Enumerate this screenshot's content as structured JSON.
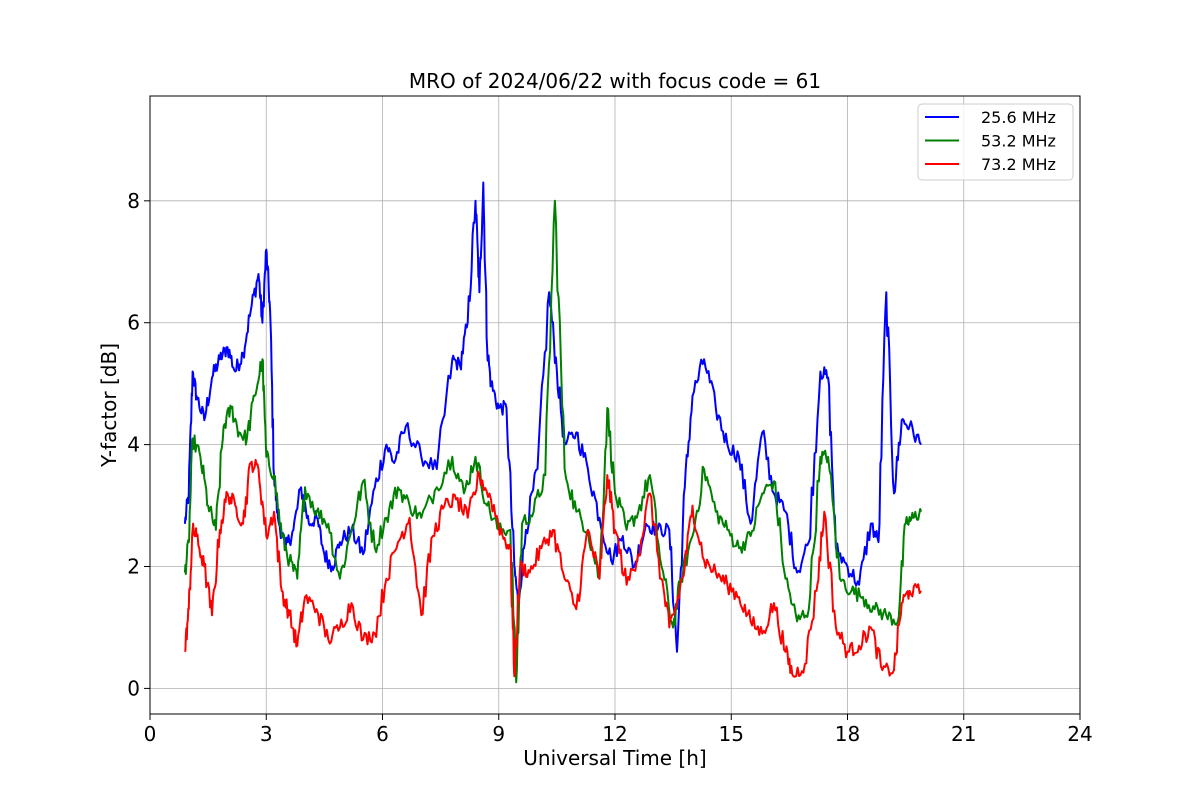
{
  "chart_data": {
    "type": "line",
    "title": "MRO of 2024/06/22 with focus code = 61",
    "xlabel": "Universal Time [h]",
    "ylabel": "Y-factor [dB]",
    "xlim": [
      0,
      24
    ],
    "ylim": [
      -0.42,
      9.72
    ],
    "xticks": [
      0,
      3,
      6,
      9,
      12,
      15,
      18,
      21,
      24
    ],
    "yticks": [
      0,
      2,
      4,
      6,
      8
    ],
    "grid": true,
    "legend_position": "top-right",
    "series": [
      {
        "name": "25.6 MHz",
        "color": "#0000ff",
        "x": [
          0.9,
          1.0,
          1.1,
          1.2,
          1.4,
          1.6,
          1.8,
          2.0,
          2.2,
          2.4,
          2.6,
          2.8,
          2.9,
          3.0,
          3.1,
          3.2,
          3.3,
          3.5,
          3.7,
          3.9,
          4.1,
          4.3,
          4.5,
          4.7,
          4.9,
          5.2,
          5.5,
          5.8,
          6.1,
          6.3,
          6.6,
          7.0,
          7.4,
          7.8,
          8.0,
          8.2,
          8.4,
          8.5,
          8.6,
          8.7,
          8.8,
          9.0,
          9.2,
          9.4,
          9.5,
          9.7,
          10.0,
          10.3,
          10.5,
          10.7,
          11.0,
          11.3,
          11.6,
          11.9,
          12.2,
          12.5,
          12.8,
          13.1,
          13.4,
          13.6,
          13.8,
          14.0,
          14.3,
          14.6,
          14.9,
          15.2,
          15.5,
          15.8,
          16.1,
          16.4,
          16.7,
          17.0,
          17.3,
          17.5,
          17.7,
          18.0,
          18.3,
          18.6,
          18.8,
          19.0,
          19.2,
          19.4,
          19.6,
          19.9
        ],
        "y": [
          2.7,
          3.2,
          5.2,
          4.8,
          4.4,
          5.1,
          5.4,
          5.6,
          5.2,
          5.5,
          6.2,
          6.8,
          6.0,
          7.2,
          6.2,
          3.5,
          2.8,
          2.3,
          2.6,
          3.3,
          2.7,
          2.8,
          2.2,
          2.0,
          2.4,
          2.6,
          2.2,
          3.3,
          4.0,
          3.7,
          4.3,
          3.8,
          3.6,
          5.4,
          5.3,
          6.0,
          8.0,
          6.5,
          8.3,
          5.6,
          5.0,
          4.6,
          4.6,
          2.0,
          1.4,
          2.6,
          3.6,
          6.5,
          5.2,
          4.0,
          4.2,
          3.6,
          2.8,
          2.1,
          2.5,
          2.0,
          2.7,
          2.6,
          2.6,
          0.6,
          3.3,
          4.8,
          5.4,
          4.6,
          4.0,
          3.8,
          2.7,
          4.2,
          3.2,
          2.9,
          1.9,
          2.4,
          5.2,
          5.1,
          2.3,
          2.0,
          1.7,
          2.7,
          2.4,
          6.5,
          3.2,
          4.4,
          4.3,
          4.0
        ]
      },
      {
        "name": "53.2 MHz",
        "color": "#008000",
        "x": [
          0.9,
          1.0,
          1.1,
          1.3,
          1.5,
          1.7,
          1.9,
          2.1,
          2.3,
          2.5,
          2.7,
          2.9,
          3.0,
          3.2,
          3.4,
          3.6,
          3.8,
          4.0,
          4.3,
          4.6,
          4.9,
          5.2,
          5.5,
          5.8,
          6.1,
          6.4,
          6.7,
          7.0,
          7.4,
          7.8,
          8.1,
          8.4,
          8.7,
          9.0,
          9.3,
          9.45,
          9.6,
          9.9,
          10.2,
          10.45,
          10.7,
          11.0,
          11.3,
          11.6,
          11.8,
          12.0,
          12.3,
          12.6,
          12.9,
          13.2,
          13.5,
          13.7,
          14.0,
          14.3,
          14.6,
          14.9,
          15.2,
          15.5,
          15.8,
          16.1,
          16.4,
          16.7,
          17.0,
          17.3,
          17.5,
          17.8,
          18.1,
          18.4,
          18.7,
          19.0,
          19.3,
          19.5,
          19.7,
          19.9
        ],
        "y": [
          1.9,
          2.4,
          4.1,
          3.8,
          3.0,
          2.6,
          4.3,
          4.6,
          4.2,
          4.1,
          4.8,
          5.4,
          3.8,
          3.5,
          2.5,
          2.1,
          1.8,
          3.3,
          2.9,
          2.7,
          1.8,
          2.6,
          3.4,
          2.3,
          2.8,
          3.3,
          3.0,
          2.8,
          3.3,
          3.8,
          3.2,
          3.8,
          3.0,
          2.6,
          2.6,
          0.1,
          2.7,
          2.9,
          3.5,
          8.0,
          3.6,
          2.9,
          2.6,
          1.8,
          4.6,
          3.2,
          2.6,
          2.9,
          3.5,
          2.0,
          1.0,
          1.8,
          2.5,
          3.6,
          2.9,
          2.6,
          2.3,
          2.5,
          3.2,
          3.4,
          1.8,
          1.1,
          1.3,
          3.8,
          3.8,
          1.8,
          1.6,
          1.5,
          1.3,
          1.2,
          1.1,
          2.7,
          2.8,
          2.9
        ]
      },
      {
        "name": "73.2 MHz",
        "color": "#ff0000",
        "x": [
          0.9,
          1.0,
          1.1,
          1.2,
          1.4,
          1.6,
          1.8,
          2.0,
          2.2,
          2.4,
          2.6,
          2.8,
          3.0,
          3.2,
          3.4,
          3.6,
          3.8,
          4.0,
          4.3,
          4.6,
          4.9,
          5.2,
          5.5,
          5.8,
          6.1,
          6.4,
          6.7,
          7.0,
          7.3,
          7.6,
          7.9,
          8.2,
          8.5,
          8.8,
          9.1,
          9.3,
          9.4,
          9.55,
          9.8,
          10.1,
          10.4,
          10.7,
          11.0,
          11.3,
          11.6,
          11.8,
          12.0,
          12.3,
          12.6,
          12.9,
          13.2,
          13.4,
          13.6,
          13.8,
          14.0,
          14.3,
          14.6,
          14.9,
          15.2,
          15.5,
          15.8,
          16.1,
          16.4,
          16.6,
          16.9,
          17.2,
          17.4,
          17.7,
          18.0,
          18.3,
          18.6,
          18.9,
          19.2,
          19.4,
          19.6,
          19.9
        ],
        "y": [
          0.6,
          1.3,
          2.6,
          2.5,
          2.0,
          1.2,
          2.6,
          3.2,
          3.0,
          2.7,
          3.7,
          3.6,
          2.5,
          2.9,
          1.6,
          1.2,
          0.7,
          1.5,
          1.3,
          0.8,
          1.0,
          1.4,
          0.8,
          0.9,
          1.8,
          2.4,
          2.8,
          1.2,
          2.5,
          3.0,
          3.1,
          2.8,
          3.5,
          3.1,
          2.5,
          2.3,
          0.2,
          2.0,
          1.9,
          2.3,
          2.6,
          1.8,
          1.3,
          2.6,
          1.8,
          3.5,
          2.6,
          1.7,
          2.2,
          3.2,
          1.8,
          1.0,
          1.4,
          2.0,
          3.0,
          2.1,
          1.9,
          1.7,
          1.5,
          1.1,
          0.9,
          1.4,
          0.6,
          0.2,
          0.4,
          1.6,
          2.9,
          1.0,
          0.6,
          0.7,
          1.0,
          0.3,
          0.3,
          1.4,
          1.6,
          1.6
        ]
      }
    ]
  }
}
